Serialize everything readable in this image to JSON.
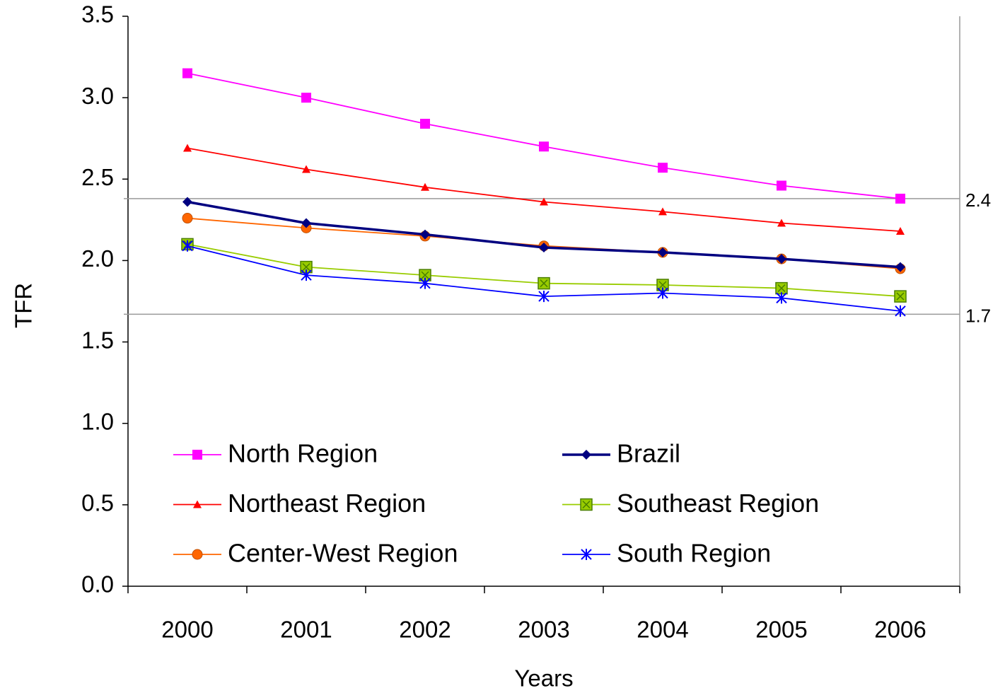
{
  "chart_data": {
    "type": "line",
    "x_label": "Years",
    "y_label": "TFR",
    "categories": [
      "2000",
      "2001",
      "2002",
      "2003",
      "2004",
      "2005",
      "2006"
    ],
    "ylim": [
      0,
      3.5
    ],
    "yticks": [
      {
        "value": 0,
        "label": "0.0"
      },
      {
        "value": 0.5,
        "label": "0.5"
      },
      {
        "value": 1,
        "label": "1.0"
      },
      {
        "value": 1.5,
        "label": "1.5"
      },
      {
        "value": 2,
        "label": "2.0"
      },
      {
        "value": 2.5,
        "label": "2.5"
      },
      {
        "value": 3,
        "label": "3.0"
      },
      {
        "value": 3.5,
        "label": "3.5"
      }
    ],
    "reference_lines": [
      {
        "value": 2.38,
        "label": "2.4"
      },
      {
        "value": 1.67,
        "label": "1.7"
      }
    ],
    "series": [
      {
        "name": "North Region",
        "color": "#ff00ff",
        "marker": "square",
        "values": [
          3.15,
          3.0,
          2.84,
          2.7,
          2.57,
          2.46,
          2.38
        ]
      },
      {
        "name": "Northeast Region",
        "color": "#ff0000",
        "marker": "triangle",
        "values": [
          2.69,
          2.56,
          2.45,
          2.36,
          2.3,
          2.23,
          2.18
        ]
      },
      {
        "name": "Center-West Region",
        "color": "#ff6600",
        "marker": "circle",
        "values": [
          2.26,
          2.2,
          2.15,
          2.09,
          2.05,
          2.01,
          1.95
        ]
      },
      {
        "name": "Brazil",
        "color": "#000080",
        "marker": "diamond",
        "values": [
          2.36,
          2.23,
          2.16,
          2.08,
          2.05,
          2.01,
          1.96
        ]
      },
      {
        "name": "Southeast Region",
        "color": "#99cc00",
        "marker": "xsquare",
        "values": [
          2.1,
          1.96,
          1.91,
          1.86,
          1.85,
          1.83,
          1.78
        ]
      },
      {
        "name": "South Region",
        "color": "#0000ff",
        "marker": "asterisk",
        "values": [
          2.09,
          1.91,
          1.86,
          1.78,
          1.8,
          1.77,
          1.69
        ]
      }
    ]
  }
}
